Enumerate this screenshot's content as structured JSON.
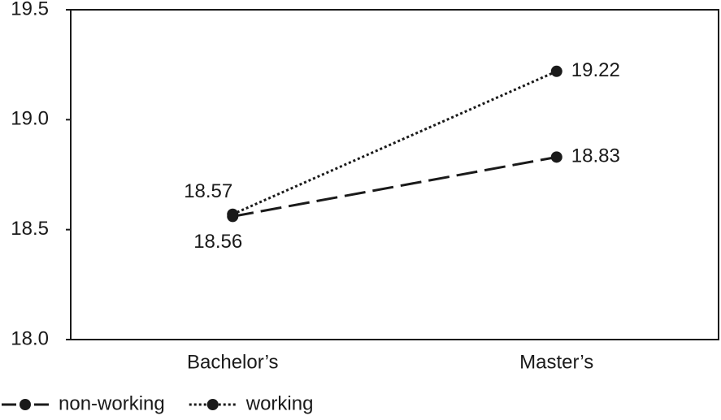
{
  "chart_data": {
    "type": "line",
    "categories": [
      "Bachelor’s",
      "Master’s"
    ],
    "series": [
      {
        "name": "non-working",
        "color": "#1a1a1a",
        "line_style": "dashed",
        "values": [
          18.56,
          18.83
        ]
      },
      {
        "name": "working",
        "color": "#1a1a1a",
        "line_style": "dotted",
        "values": [
          18.57,
          19.22
        ]
      }
    ],
    "ylim": [
      18,
      19.5
    ],
    "yticks": [
      {
        "value": 18,
        "label": "18.0"
      },
      18.5,
      {
        "value": 19,
        "label": "19.0"
      },
      19.5
    ],
    "legend": "bottom-left"
  }
}
